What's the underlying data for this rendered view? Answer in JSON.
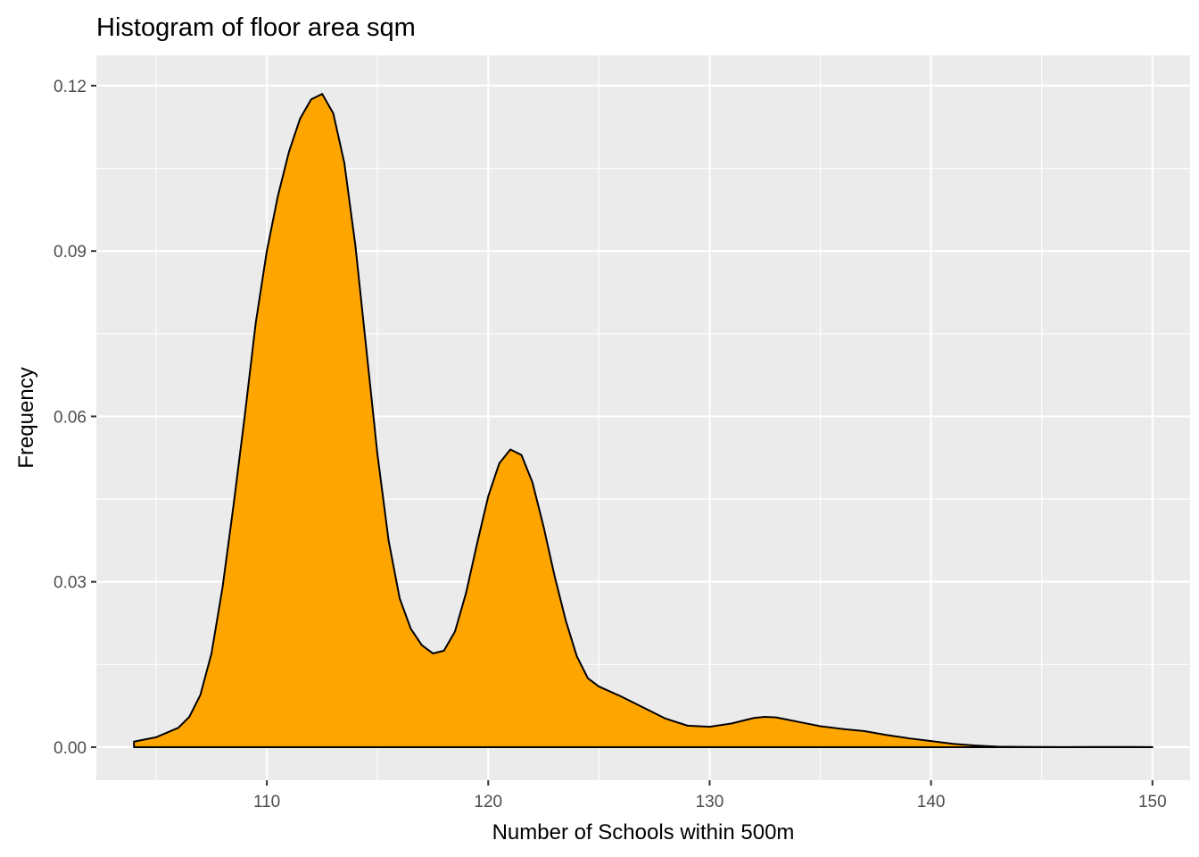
{
  "chart_data": {
    "type": "area",
    "title": "Histogram of floor area sqm",
    "xlabel": "Number of Schools within 500m",
    "ylabel": "Frequency",
    "xlim": [
      102.3,
      151.7
    ],
    "ylim": [
      -0.006,
      0.1255
    ],
    "x_ticks": [
      110,
      120,
      130,
      140,
      150
    ],
    "x_tick_labels": [
      "110",
      "120",
      "130",
      "140",
      "150"
    ],
    "y_ticks": [
      0.0,
      0.03,
      0.06,
      0.09,
      0.12
    ],
    "y_tick_labels": [
      "0.00",
      "0.03",
      "0.06",
      "0.09",
      "0.12"
    ],
    "grid": true,
    "legend": "none",
    "colors": {
      "fill": "#FFA500",
      "outline": "#000000",
      "panel": "#EBEBEB",
      "grid": "#FFFFFF"
    },
    "series": [
      {
        "x": [
          104,
          105,
          106,
          106.5,
          107,
          107.5,
          108,
          108.5,
          109,
          109.5,
          110,
          110.5,
          111,
          111.5,
          112,
          112.5,
          113,
          113.5,
          114,
          114.5,
          115,
          115.5,
          116,
          116.5,
          117,
          117.5,
          118,
          118.5,
          119,
          119.5,
          120,
          120.5,
          121,
          121.5,
          122,
          122.5,
          123,
          123.5,
          124,
          124.5,
          125,
          126,
          127,
          128,
          129,
          130,
          131,
          132,
          132.5,
          133,
          134,
          135,
          136,
          137,
          138,
          139,
          140,
          141,
          142,
          143,
          144,
          145,
          146,
          147,
          148,
          149,
          150
        ],
        "y": [
          0.001,
          0.0018,
          0.0035,
          0.0055,
          0.0095,
          0.017,
          0.029,
          0.044,
          0.06,
          0.077,
          0.09,
          0.1,
          0.108,
          0.114,
          0.1175,
          0.1185,
          0.115,
          0.106,
          0.091,
          0.072,
          0.053,
          0.0375,
          0.027,
          0.0215,
          0.0185,
          0.017,
          0.0175,
          0.021,
          0.028,
          0.037,
          0.0455,
          0.0515,
          0.054,
          0.053,
          0.048,
          0.04,
          0.031,
          0.023,
          0.0165,
          0.0125,
          0.011,
          0.0092,
          0.0072,
          0.0052,
          0.0039,
          0.0037,
          0.0043,
          0.0053,
          0.0055,
          0.0054,
          0.0046,
          0.0038,
          0.0033,
          0.0029,
          0.0022,
          0.0016,
          0.0011,
          0.0006,
          0.0003,
          0.0001,
          5e-05,
          3e-05,
          2e-05,
          3e-05,
          4e-05,
          3e-05,
          2e-05
        ]
      }
    ]
  }
}
